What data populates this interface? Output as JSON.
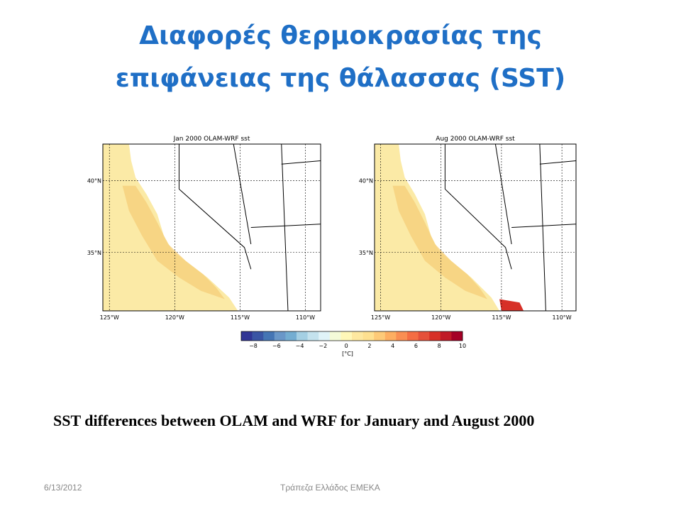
{
  "header": {
    "title_lines": [
      "Διαφορές θερμοκρασίας της",
      "επιφάνειας της θάλασσας (SST)"
    ]
  },
  "maps": [
    {
      "title": "Jan 2000 OLAM-WRF sst",
      "lat_labels": [
        "40°N",
        "35°N"
      ],
      "lon_labels": [
        "125°W",
        "120°W",
        "115°W",
        "110°W"
      ]
    },
    {
      "title": "Aug 2000 OLAM-WRF sst",
      "lat_labels": [
        "40°N",
        "35°N"
      ],
      "lon_labels": [
        "125°W",
        "120°W",
        "115°W",
        "110°W"
      ]
    }
  ],
  "colorbar": {
    "tick_labels": [
      "−8",
      "−6",
      "−4",
      "−2",
      "0",
      "2",
      "4",
      "6",
      "8",
      "10"
    ],
    "unit": "[°C]"
  },
  "caption": "SST differences between OLAM and WRF for January and August 2000",
  "footer": {
    "date": "6/13/2012",
    "org": "Τράπεζα Ελλάδος ΕΜΕΚΑ"
  }
}
